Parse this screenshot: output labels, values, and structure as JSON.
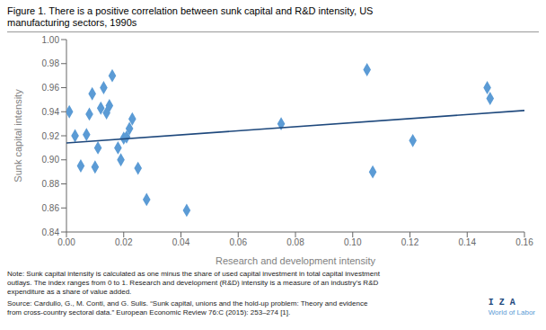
{
  "chart_data": {
    "type": "scatter",
    "title": [
      "Figure 1. There is a positive correlation between sunk capital and R&D intensity, US",
      "manufacturing sectors, 1990s"
    ],
    "x_label": "Research and development intensity",
    "y_label": "Sunk capital intensity",
    "series": [
      {
        "type": "scatter",
        "marker": "diamond",
        "color": "#5B9BD5",
        "x": [
          0.001,
          0.003,
          0.005,
          0.007,
          0.008,
          0.009,
          0.01,
          0.011,
          0.012,
          0.013,
          0.014,
          0.015,
          0.016,
          0.018,
          0.019,
          0.02,
          0.021,
          0.022,
          0.023,
          0.025,
          0.028,
          0.042,
          0.075,
          0.105,
          0.107,
          0.121,
          0.147,
          0.148
        ],
        "values": [
          0.94,
          0.92,
          0.895,
          0.921,
          0.938,
          0.955,
          0.894,
          0.91,
          0.943,
          0.96,
          0.939,
          0.945,
          0.97,
          0.91,
          0.9,
          0.918,
          0.919,
          0.926,
          0.934,
          0.893,
          0.867,
          0.858,
          0.93,
          0.975,
          0.89,
          0.916,
          0.96,
          0.951
        ]
      },
      {
        "type": "line",
        "color": "#1F497D",
        "x": [
          0.0,
          0.16
        ],
        "values": [
          0.914,
          0.941
        ]
      }
    ],
    "xlim": [
      0.0,
      0.16
    ],
    "ylim": [
      0.84,
      1.0
    ],
    "xticks": [
      {
        "value": 0.0,
        "label": "0.00"
      },
      0.02,
      0.04,
      0.06,
      0.08,
      {
        "value": 0.1,
        "label": "0.10"
      },
      0.12,
      0.14,
      0.16
    ],
    "yticks": [
      0.84,
      0.86,
      0.88,
      {
        "value": 0.9,
        "label": "0.90"
      },
      0.92,
      0.94,
      0.96,
      0.98,
      {
        "value": 1.0,
        "label": "1.00"
      }
    ],
    "grid": false,
    "notes": [
      "Note: Sunk capital intensity is calculated as one minus the share of used capital investment in total capital investment",
      "outlays. The index ranges from 0 to 1. Research and development (R&D) intensity is a measure of an industry’s R&D",
      "expenditure as a share of value added."
    ],
    "source": [
      "Source: Cardullo, G., M. Conti, and G. Sulis. “Sunk capital, unions and the hold-up problem: Theory and evidence",
      "from cross-country sectoral data.” European Economic Review 76:C (2015): 253–274 [1]."
    ],
    "annotations": [
      "I Z A",
      "World of Labor"
    ]
  }
}
